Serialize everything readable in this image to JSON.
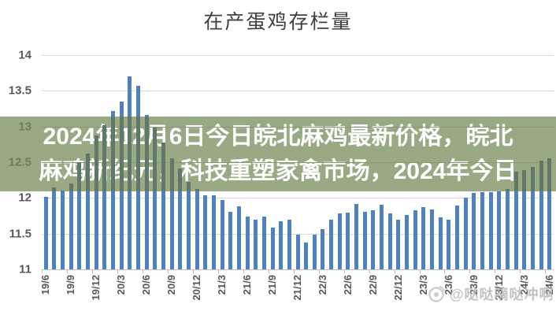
{
  "title": "在产蛋鸡存栏量",
  "overlay": {
    "line1": "2024年12月6日今日皖北麻鸡最新价格，皖北",
    "line2": "麻鸡新纪元，科技重塑家禽市场，2024年今日"
  },
  "watermark": {
    "handle": "@哒哒嘀哒冲啊"
  },
  "colors": {
    "bar": "#4f81bd",
    "banner_background": "#98a984",
    "ghost_bar": "#5f786a",
    "ghost_gridline": "#8a9878",
    "gridline": "#d9d9d9",
    "axis_text": "#595959",
    "banner_text": "#ffffff"
  },
  "chart_data": {
    "type": "bar",
    "title": "在产蛋鸡存栏量",
    "xlabel": "",
    "ylabel": "",
    "ylim": [
      11,
      14
    ],
    "yticks": [
      14,
      13.5,
      13,
      12.5,
      12,
      11.5,
      11
    ],
    "grid": true,
    "legend": "none",
    "x_tick_labels": [
      "19/6",
      "19/9",
      "19/12",
      "20/3",
      "20/6",
      "20/9",
      "20/12",
      "21/3",
      "21/6",
      "21/9",
      "21/12",
      "22/3",
      "22/6",
      "22/9",
      "22/12",
      "23/3",
      "23/6",
      "23/9",
      "23/12",
      "24/3",
      "24/6"
    ],
    "x_tick_every": 3,
    "values": [
      12.02,
      12.15,
      12.1,
      12.2,
      12.5,
      12.62,
      12.88,
      13.02,
      13.22,
      13.35,
      13.7,
      13.57,
      13.16,
      12.98,
      12.78,
      12.56,
      12.41,
      12.22,
      12.13,
      12.04,
      12.04,
      11.97,
      11.8,
      11.88,
      11.74,
      11.7,
      11.74,
      11.59,
      11.67,
      11.69,
      11.48,
      11.37,
      11.48,
      11.56,
      11.7,
      11.78,
      11.79,
      11.92,
      11.8,
      11.83,
      11.9,
      11.78,
      11.69,
      11.76,
      11.83,
      11.87,
      11.84,
      11.73,
      11.7,
      11.89,
      12.0,
      12.07,
      12.08,
      12.08,
      12.09,
      12.12,
      12.37,
      12.39,
      12.43,
      12.52,
      12.56
    ]
  }
}
